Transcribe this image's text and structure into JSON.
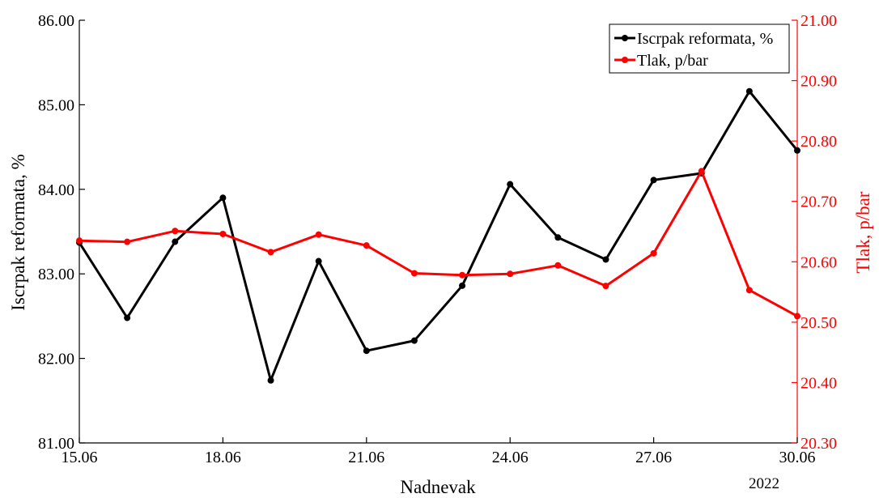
{
  "chart_data": {
    "type": "line",
    "xlabel": "Nadnevak",
    "x_sublabel": "2022",
    "ylabel_left": "Iscrpak reformata, %",
    "ylabel_right": "Tlak, p/bar",
    "x": [
      "15.06",
      "16.06",
      "17.06",
      "18.06",
      "19.06",
      "20.06",
      "21.06",
      "22.06",
      "23.06",
      "24.06",
      "25.06",
      "26.06",
      "27.06",
      "28.06",
      "29.06",
      "30.06"
    ],
    "x_ticks": [
      "15.06",
      "18.06",
      "21.06",
      "24.06",
      "27.06",
      "30.06"
    ],
    "ylim_left": [
      81.0,
      86.0
    ],
    "y_ticks_left": [
      "81.00",
      "82.00",
      "83.00",
      "84.00",
      "85.00",
      "86.00"
    ],
    "ylim_right": [
      20.3,
      21.0
    ],
    "y_ticks_right": [
      "20.30",
      "20.40",
      "20.50",
      "20.60",
      "20.70",
      "20.80",
      "20.90",
      "21.00"
    ],
    "grid": false,
    "legend_position": "top-right",
    "series": [
      {
        "name": "Iscrpak reformata, %",
        "axis": "left",
        "color": "#000000",
        "values": [
          83.37,
          82.48,
          83.38,
          83.9,
          81.74,
          83.15,
          82.09,
          82.21,
          82.86,
          84.06,
          83.43,
          83.17,
          84.11,
          84.19,
          85.16,
          84.46
        ]
      },
      {
        "name": "Tlak, p/bar",
        "axis": "right",
        "color": "#ff0000",
        "values": [
          20.635,
          20.633,
          20.651,
          20.646,
          20.616,
          20.645,
          20.627,
          20.581,
          20.578,
          20.58,
          20.594,
          20.56,
          20.614,
          20.75,
          20.553,
          20.51
        ]
      }
    ]
  }
}
